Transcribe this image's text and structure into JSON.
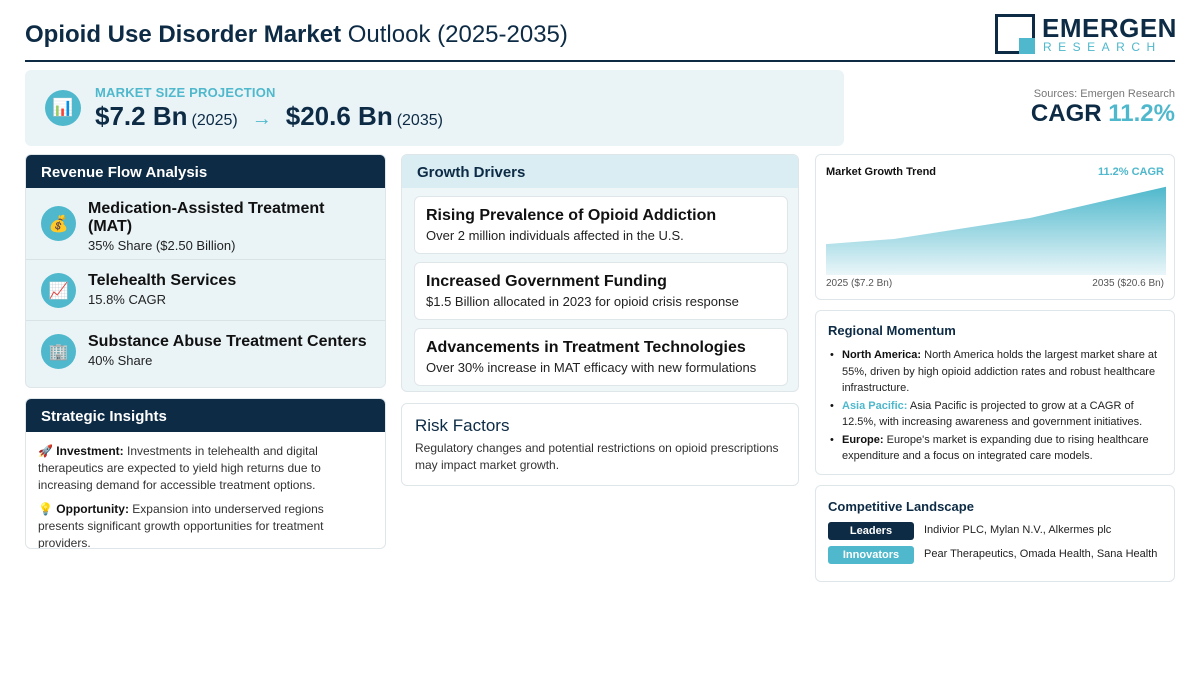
{
  "header": {
    "title_bold": "Opioid Use Disorder Market",
    "title_rest": " Outlook (2025-2035)",
    "logo_word": "EMERGEN",
    "logo_sub": "RESEARCH"
  },
  "projection": {
    "icon": "bar-chart-icon",
    "label": "MARKET SIZE PROJECTION",
    "start_value": "$7.2 Bn",
    "start_year": "(2025)",
    "arrow": "→",
    "end_value": "$20.6 Bn",
    "end_year": "(2035)"
  },
  "summary": {
    "sources": "Sources: Emergen Research",
    "cagr_label": "CAGR ",
    "cagr_value": "11.2%"
  },
  "revenue_flow": {
    "heading": "Revenue Flow Analysis",
    "items": [
      {
        "icon": "money-bag-icon",
        "title": "Medication-Assisted Treatment (MAT)",
        "subtitle": "35% Share ($2.50 Billion)"
      },
      {
        "icon": "chart-increasing-icon",
        "title": "Telehealth Services",
        "subtitle": "15.8% CAGR"
      },
      {
        "icon": "office-building-icon",
        "title": "Substance Abuse Treatment Centers",
        "subtitle": "40% Share"
      }
    ]
  },
  "strategic": {
    "heading": "Strategic Insights",
    "investment_label": "Investment:",
    "investment_text": " Investments in telehealth and digital therapeutics are expected to yield high returns due to increasing demand for accessible treatment options.",
    "opportunity_label": "Opportunity:",
    "opportunity_text": " Expansion into underserved regions presents significant growth opportunities for treatment providers."
  },
  "growth_drivers": {
    "heading": "Growth Drivers",
    "items": [
      {
        "title": "Rising Prevalence of Opioid Addiction",
        "desc": "Over 2 million individuals affected in the U.S."
      },
      {
        "title": "Increased Government Funding",
        "desc": "$1.5 Billion allocated in 2023 for opioid crisis response"
      },
      {
        "title": "Advancements in Treatment Technologies",
        "desc": "Over 30% increase in MAT efficacy with new formulations"
      }
    ]
  },
  "risk": {
    "heading": "Risk Factors",
    "text": "Regulatory changes and potential restrictions on opioid prescriptions may impact market growth."
  },
  "trend": {
    "title": "Market Growth Trend",
    "cagr": "11.2% CAGR",
    "start_label": "2025 ($7.2 Bn)",
    "end_label": "2035 ($20.6 Bn)"
  },
  "chart_data": {
    "type": "area",
    "x": [
      2025,
      2027,
      2031,
      2035
    ],
    "values": [
      7.2,
      8.4,
      13.3,
      20.6
    ],
    "ylim": [
      0,
      21
    ],
    "title": "Market Growth Trend",
    "xlabel": "",
    "ylabel": "",
    "grid": false,
    "colors": {
      "top": "#4fb8cc",
      "bottom": "#eaf6f9"
    }
  },
  "regional": {
    "heading": "Regional Momentum",
    "items": [
      {
        "name": "North America:",
        "text": " North America holds the largest market share at 55%, driven by high opioid addiction rates and robust healthcare infrastructure."
      },
      {
        "name": "Asia Pacific:",
        "text": " Asia Pacific is projected to grow at a CAGR of 12.5%, with increasing awareness and government initiatives."
      },
      {
        "name": "Europe:",
        "text": " Europe's market is expanding due to rising healthcare expenditure and a focus on integrated care models."
      }
    ]
  },
  "competitive": {
    "heading": "Competitive Landscape",
    "leaders_label": "Leaders",
    "leaders": "Indivior PLC, Mylan N.V., Alkermes plc",
    "innovators_label": "Innovators",
    "innovators": "Pear Therapeutics, Omada Health, Sana Health"
  },
  "colors": {
    "navy": "#0d2b45",
    "accent": "#4fb8cc",
    "panel": "#eaf4f7"
  }
}
